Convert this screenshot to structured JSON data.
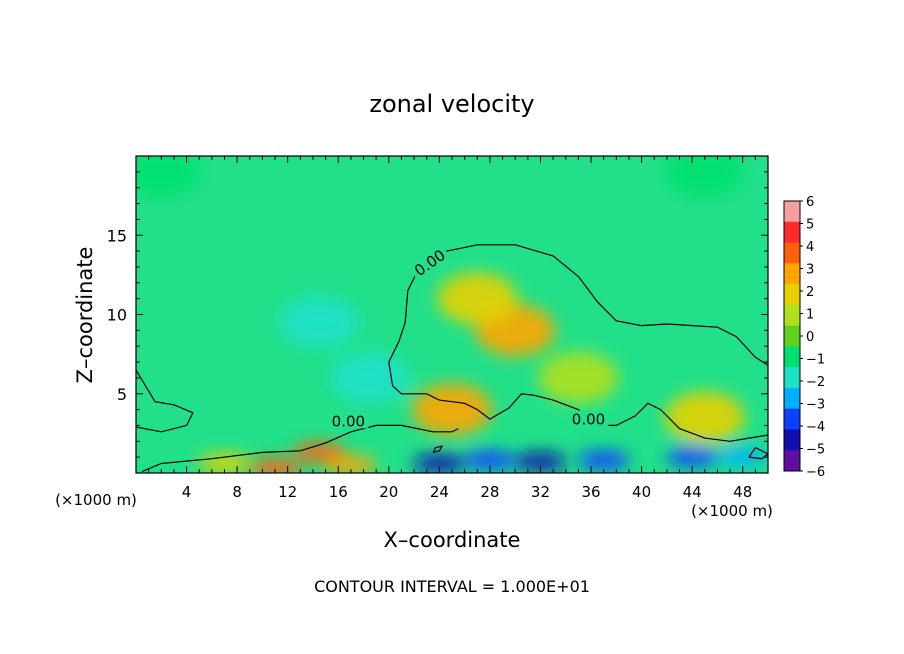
{
  "chart_data": {
    "type": "heatmap",
    "title": "zonal velocity",
    "xlabel": "X–coordinate",
    "ylabel": "Z–coordinate",
    "x_unit_label": "(×1000 m)",
    "footer": "CONTOUR INTERVAL = 1.000E+01",
    "xlim": [
      0,
      50
    ],
    "ylim": [
      0,
      20
    ],
    "x_ticks": [
      4,
      8,
      12,
      16,
      20,
      24,
      28,
      32,
      36,
      40,
      44,
      48
    ],
    "y_ticks": [
      5,
      10,
      15
    ],
    "colorbar": {
      "ticks": [
        "6",
        "5",
        "4",
        "3",
        "2",
        "1",
        "0",
        "−1",
        "−2",
        "−3",
        "−4",
        "−5",
        "−6"
      ],
      "range": [
        -6,
        6
      ],
      "colors": [
        "#f4a0a0",
        "#ff2a2a",
        "#ff6010",
        "#ffa500",
        "#e8d000",
        "#b0e020",
        "#60d020",
        "#00e070",
        "#20e0c8",
        "#00b0ff",
        "#1040ff",
        "#1010b0",
        "#6010a0"
      ]
    },
    "contour_label": "0.00",
    "blobs": [
      {
        "x": 30,
        "z": 9,
        "u": 3.0
      },
      {
        "x": 27,
        "z": 11,
        "u": 1.6
      },
      {
        "x": 35,
        "z": 6,
        "u": 1.0
      },
      {
        "x": 25,
        "z": 4,
        "u": 3.2
      },
      {
        "x": 45,
        "z": 3.5,
        "u": 2.2
      },
      {
        "x": 11,
        "z": 0.3,
        "u": 4.5
      },
      {
        "x": 14.5,
        "z": 1.3,
        "u": 4.2
      },
      {
        "x": 7,
        "z": 0.6,
        "u": 2.0
      },
      {
        "x": 17,
        "z": 0.5,
        "u": 3.0
      },
      {
        "x": 24,
        "z": 0.6,
        "u": -4.5
      },
      {
        "x": 28,
        "z": 0.8,
        "u": -4.0
      },
      {
        "x": 32,
        "z": 0.7,
        "u": -4.8
      },
      {
        "x": 37,
        "z": 0.8,
        "u": -3.5
      },
      {
        "x": 44,
        "z": 1.0,
        "u": -3.5
      },
      {
        "x": 48,
        "z": 1.0,
        "u": -3.0
      },
      {
        "x": 14.5,
        "z": 9.5,
        "u": -1.8
      },
      {
        "x": 18.5,
        "z": 6.0,
        "u": -1.8
      },
      {
        "x": 2,
        "z": 19,
        "u": -1.0
      },
      {
        "x": 45,
        "z": 19,
        "u": -1.0
      }
    ],
    "contour_zero": [
      [
        [
          0,
          6.5
        ],
        [
          1.5,
          4.5
        ],
        [
          3,
          4.3
        ],
        [
          4.5,
          3.8
        ],
        [
          4,
          3.0
        ],
        [
          2,
          2.6
        ],
        [
          0,
          2.9
        ]
      ],
      [
        [
          0.5,
          0.1
        ],
        [
          2,
          0.6
        ],
        [
          6,
          0.9
        ],
        [
          10,
          1.3
        ],
        [
          13,
          1.4
        ],
        [
          15,
          1.9
        ],
        [
          17,
          2.6
        ],
        [
          19,
          3.0
        ],
        [
          21,
          3.0
        ],
        [
          23.5,
          2.6
        ],
        [
          25,
          2.6
        ],
        [
          25.5,
          2.8
        ]
      ],
      [
        [
          20,
          7.0
        ],
        [
          20.8,
          8.3
        ],
        [
          21.3,
          9.5
        ],
        [
          21.5,
          11.5
        ],
        [
          22.3,
          12.8
        ],
        [
          24,
          13.9
        ],
        [
          27,
          14.4
        ],
        [
          30,
          14.4
        ],
        [
          33,
          13.7
        ],
        [
          35,
          12.4
        ],
        [
          36.5,
          10.8
        ],
        [
          38,
          9.6
        ],
        [
          40,
          9.3
        ],
        [
          42,
          9.4
        ],
        [
          44,
          9.3
        ],
        [
          46,
          9.2
        ],
        [
          47.5,
          8.6
        ],
        [
          49,
          7.3
        ],
        [
          50,
          6.8
        ]
      ],
      [
        [
          20,
          7.0
        ],
        [
          20.3,
          5.5
        ],
        [
          21,
          5.0
        ],
        [
          23,
          5.0
        ],
        [
          24,
          4.6
        ],
        [
          26,
          4.4
        ],
        [
          27,
          4.0
        ],
        [
          28,
          3.4
        ],
        [
          29.5,
          4.1
        ],
        [
          30.5,
          5.0
        ],
        [
          31.5,
          4.9
        ],
        [
          33,
          4.6
        ],
        [
          35,
          4.0
        ],
        [
          36.5,
          3.0
        ],
        [
          38,
          3.0
        ],
        [
          39.5,
          3.6
        ],
        [
          40.5,
          4.4
        ],
        [
          41.5,
          4.0
        ],
        [
          43,
          2.8
        ],
        [
          45,
          2.2
        ],
        [
          47,
          2.0
        ],
        [
          48.5,
          2.2
        ],
        [
          50,
          2.4
        ]
      ],
      [
        [
          23.5,
          1.3
        ],
        [
          24,
          1.4
        ],
        [
          24.2,
          1.7
        ],
        [
          23.7,
          1.6
        ],
        [
          23.5,
          1.3
        ]
      ],
      [
        [
          48.5,
          1.0
        ],
        [
          49.5,
          0.9
        ],
        [
          50,
          1.2
        ],
        [
          49,
          1.6
        ],
        [
          48.5,
          1.0
        ]
      ]
    ]
  }
}
